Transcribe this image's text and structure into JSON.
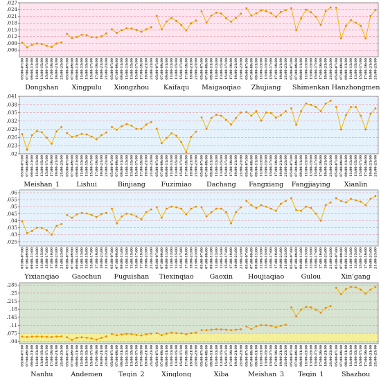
{
  "chart_data": [
    {
      "type": "line",
      "background": "#fde4ef",
      "ylim": [
        0.003,
        0.027
      ],
      "yticks": [
        0.006,
        0.009,
        0.012,
        0.015,
        0.018,
        0.021,
        0.024,
        0.027
      ],
      "time_labels": [
        "05:00-07:00",
        "07:00-09:00",
        "09:00-11:00",
        "11:00-13:00",
        "13:00-15:00",
        "15:00-17:00",
        "17:00-19:00",
        "19:00-21:00",
        "21:00-23:00"
      ],
      "categories": [
        {
          "name": "Dongshan",
          "values": [
            0.0093,
            0.0072,
            0.0084,
            0.0089,
            0.0087,
            0.0079,
            0.0074,
            0.0089,
            0.0094
          ]
        },
        {
          "name": "Xingpulu",
          "values": [
            0.0132,
            0.0113,
            0.0118,
            0.0128,
            0.0126,
            0.0117,
            0.0116,
            0.0121,
            0.0134
          ]
        },
        {
          "name": "Xiongzhou",
          "values": [
            0.0152,
            0.0136,
            0.0148,
            0.0157,
            0.0156,
            0.0149,
            0.0141,
            0.0152,
            0.0161
          ]
        },
        {
          "name": "Kaifaqu",
          "values": [
            0.0212,
            0.0152,
            0.0187,
            0.0203,
            0.0189,
            0.0171,
            0.0147,
            0.0179,
            0.0191
          ]
        },
        {
          "name": "Maigaoqiao",
          "values": [
            0.0232,
            0.0182,
            0.0213,
            0.0226,
            0.0222,
            0.0202,
            0.0186,
            0.0203,
            0.0222
          ]
        },
        {
          "name": "Zhujiang",
          "values": [
            0.0246,
            0.0213,
            0.0223,
            0.0236,
            0.0233,
            0.0224,
            0.0208,
            0.0229,
            0.0237
          ]
        },
        {
          "name": "Shimenkan",
          "values": [
            0.0246,
            0.0148,
            0.0201,
            0.0239,
            0.0228,
            0.0208,
            0.0172,
            0.0233,
            0.0249
          ]
        },
        {
          "name": "Hanzhongmen",
          "values": [
            0.0248,
            0.0113,
            0.0168,
            0.0193,
            0.0181,
            0.0168,
            0.0112,
            0.0211,
            0.0238
          ]
        }
      ]
    },
    {
      "type": "line",
      "background": "#e6f2fb",
      "ylim": [
        0.02,
        0.041
      ],
      "yticks": [
        0.02,
        0.023,
        0.026,
        0.029,
        0.032,
        0.035,
        0.038,
        0.041
      ],
      "time_labels": [
        "05:00-07:00",
        "07:00-09:00",
        "09:00-11:00",
        "11:00-13:00",
        "13:00-15:00",
        "15:00-17:00",
        "17:00-19:00",
        "19:00-21:00",
        "21:00-23:00"
      ],
      "categories": [
        {
          "name": "Meishan_1",
          "values": [
            0.0272,
            0.0215,
            0.0268,
            0.0283,
            0.0279,
            0.0259,
            0.0237,
            0.0282,
            0.0298
          ]
        },
        {
          "name": "Lishui",
          "values": [
            0.0276,
            0.0262,
            0.0266,
            0.0273,
            0.0271,
            0.0263,
            0.0253,
            0.0268,
            0.0278
          ]
        },
        {
          "name": "Binjiang",
          "values": [
            0.0298,
            0.0288,
            0.0301,
            0.0309,
            0.0303,
            0.0291,
            0.0291,
            0.0307,
            0.0316
          ]
        },
        {
          "name": "Fuzimiao",
          "values": [
            0.0292,
            0.0239,
            0.0258,
            0.0275,
            0.0266,
            0.0243,
            0.0206,
            0.0262,
            0.0281
          ]
        },
        {
          "name": "Dachang",
          "values": [
            0.0333,
            0.0291,
            0.0331,
            0.0343,
            0.0339,
            0.0324,
            0.0307,
            0.0331,
            0.0351
          ]
        },
        {
          "name": "Fangxiang",
          "values": [
            0.0353,
            0.0339,
            0.0356,
            0.0321,
            0.0351,
            0.0349,
            0.0332,
            0.0341,
            0.0356
          ]
        },
        {
          "name": "Fangjiaying",
          "values": [
            0.0366,
            0.0306,
            0.0356,
            0.0384,
            0.0379,
            0.0371,
            0.0356,
            0.0383,
            0.0394
          ]
        },
        {
          "name": "Xianlin",
          "values": [
            0.0371,
            0.0289,
            0.0341,
            0.0371,
            0.0371,
            0.0339,
            0.0289,
            0.0346,
            0.0366
          ]
        }
      ]
    },
    {
      "type": "line",
      "background": "#e6f2fb",
      "ylim": [
        0.022,
        0.062
      ],
      "yticks": [
        0.025,
        0.03,
        0.035,
        0.04,
        0.045,
        0.05,
        0.055,
        0.06
      ],
      "time_labels": [
        "05:00-07:00",
        "07:00-09:00",
        "09:00-11:00",
        "11:00-13:00",
        "13:00-15:00",
        "15:00-17:00",
        "17:00-19:00",
        "19:00-21:00",
        "21:00-23:00"
      ],
      "categories": [
        {
          "name": "Yixianqiao",
          "values": [
            0.0396,
            0.0312,
            0.0327,
            0.0351,
            0.0349,
            0.0332,
            0.0301,
            0.0363,
            0.0376
          ]
        },
        {
          "name": "Gaochun",
          "values": [
            0.0441,
            0.0421,
            0.0446,
            0.0456,
            0.0452,
            0.0441,
            0.0426,
            0.0448,
            0.0456
          ]
        },
        {
          "name": "Fuguishan",
          "values": [
            0.0486,
            0.0381,
            0.0431,
            0.0451,
            0.0446,
            0.0431,
            0.0411,
            0.0461,
            0.0481
          ]
        },
        {
          "name": "Tiexinqiao",
          "values": [
            0.0496,
            0.0421,
            0.0486,
            0.0501,
            0.0496,
            0.0486,
            0.0446,
            0.0486,
            0.0501
          ]
        },
        {
          "name": "Gaoxin",
          "values": [
            0.0496,
            0.0431,
            0.0461,
            0.0486,
            0.0486,
            0.0461,
            0.0381,
            0.0461,
            0.0496
          ]
        },
        {
          "name": "Houjiaqiao",
          "values": [
            0.0541,
            0.0511,
            0.0491,
            0.0511,
            0.0501,
            0.0486,
            0.0471,
            0.0521,
            0.0541
          ]
        },
        {
          "name": "Gulou",
          "values": [
            0.0561,
            0.0476,
            0.0471,
            0.0501,
            0.0491,
            0.0451,
            0.0401,
            0.0511,
            0.0531
          ]
        },
        {
          "name": "Xin'gang",
          "values": [
            0.0561,
            0.0541,
            0.0531,
            0.0556,
            0.0546,
            0.0536,
            0.0511,
            0.0556,
            0.0576
          ]
        }
      ]
    },
    {
      "type": "line",
      "background": "#d8e4d2",
      "bands": [
        {
          "from": 0.04,
          "to": 0.075,
          "color": "#f5ef9a"
        }
      ],
      "ylim": [
        0.03,
        0.295
      ],
      "yticks": [
        0.04,
        0.075,
        0.11,
        0.145,
        0.18,
        0.215,
        0.25,
        0.285
      ],
      "time_labels": [
        "05:00-07:00",
        "07:00-09:00",
        "09:00-11:00",
        "11:00-13:00",
        "13:00-15:00",
        "15:00-17:00",
        "17:00-19:00",
        "19:00-21:00",
        "21:00-23:00"
      ],
      "categories": [
        {
          "name": "Nanhu",
          "values": [
            0.061,
            0.059,
            0.061,
            0.061,
            0.061,
            0.06,
            0.059,
            0.061,
            0.062
          ]
        },
        {
          "name": "Andemen",
          "values": [
            0.058,
            0.047,
            0.056,
            0.058,
            0.056,
            0.053,
            0.048,
            0.056,
            0.062
          ]
        },
        {
          "name": "Teqin_2",
          "values": [
            0.072,
            0.067,
            0.07,
            0.073,
            0.072,
            0.068,
            0.066,
            0.071,
            0.074
          ]
        },
        {
          "name": "Xinglong",
          "values": [
            0.076,
            0.067,
            0.074,
            0.078,
            0.076,
            0.075,
            0.071,
            0.076,
            0.078
          ]
        },
        {
          "name": "Xiba",
          "values": [
            0.089,
            0.089,
            0.091,
            0.093,
            0.092,
            0.091,
            0.089,
            0.091,
            0.093
          ]
        },
        {
          "name": "Meishan_3",
          "values": [
            0.105,
            0.094,
            0.106,
            0.111,
            0.11,
            0.108,
            0.101,
            0.108,
            0.113
          ]
        },
        {
          "name": "Teqin_1",
          "values": [
            0.188,
            0.149,
            0.178,
            0.19,
            0.188,
            0.178,
            0.165,
            0.186,
            0.194
          ]
        },
        {
          "name": "Shazhou",
          "values": [
            0.273,
            0.245,
            0.267,
            0.277,
            0.275,
            0.265,
            0.248,
            0.265,
            0.277
          ]
        }
      ]
    }
  ]
}
